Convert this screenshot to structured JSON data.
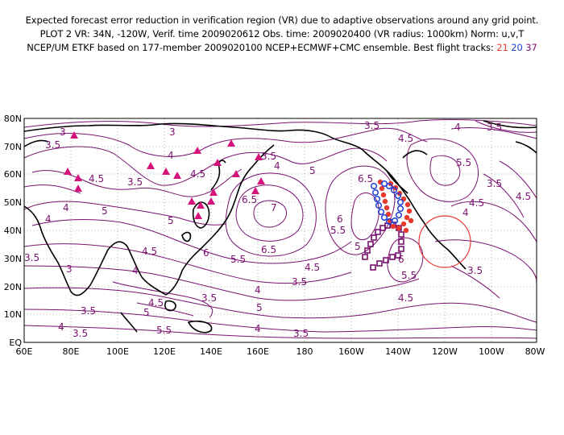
{
  "header": {
    "line1": "Expected forecast error reduction in verification region (VR) due to adaptive observations around any grid point.",
    "line2": "PLOT 2 VR: 34N, -120W, Verif. time 2009020612 Obs. time: 2009020400 (VR radius: 1000km) Norm: u,v,T",
    "line3_prefix": "NCEP/UM ETKF based on 177-member 2009020100 NCEP+ECMWF+CMC ensemble. Best flight tracks: ",
    "track_a": "21",
    "track_b": "20",
    "track_c": "37"
  },
  "map": {
    "lat_labels": [
      "80N",
      "70N",
      "60N",
      "50N",
      "40N",
      "30N",
      "20N",
      "10N",
      "EQ"
    ],
    "lon_labels": [
      "60E",
      "80E",
      "100E",
      "120E",
      "140E",
      "160E",
      "180",
      "160W",
      "140W",
      "120W",
      "100W",
      "80W"
    ],
    "contour_labels": [
      "3",
      "3.5",
      "4",
      "4.5",
      "5",
      "5.5",
      "6",
      "6.5",
      "7"
    ],
    "colors": {
      "contour": "#7a1270",
      "coast": "#000000",
      "track_21": "#e8392f",
      "track_20": "#2340d6",
      "track_37": "#7a1270",
      "verification_circle": "#e8392f",
      "raob_triangle": "#d4147a"
    }
  }
}
